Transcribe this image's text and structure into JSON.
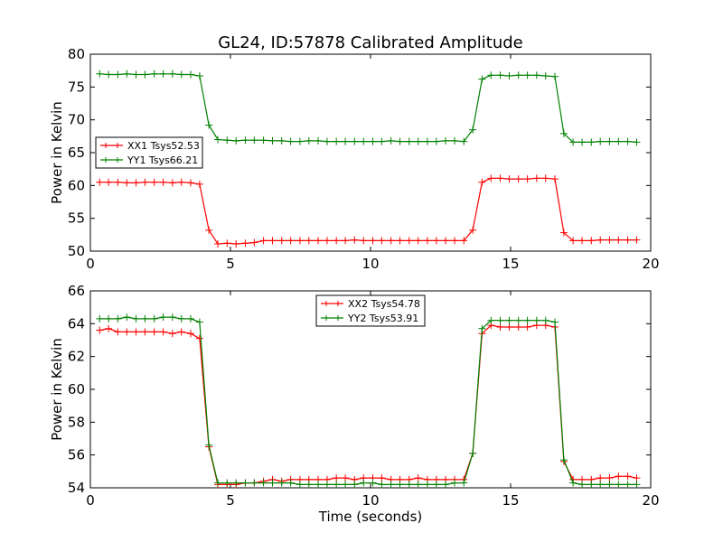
{
  "title": "GL24, ID:57878 Calibrated Amplitude",
  "chart_data": [
    {
      "type": "line",
      "ylabel": "Power in Kelvin",
      "xlabel": "",
      "xlim": [
        0,
        20
      ],
      "ylim": [
        50,
        80
      ],
      "xticks": [
        "0",
        "5",
        "10",
        "15",
        "20"
      ],
      "yticks": [
        "50",
        "55",
        "60",
        "65",
        "70",
        "75",
        "80"
      ],
      "legend_position": "center-left",
      "grid": false,
      "x": [
        0.33,
        0.65,
        0.98,
        1.3,
        1.63,
        1.95,
        2.28,
        2.6,
        2.93,
        3.25,
        3.58,
        3.9,
        4.23,
        4.55,
        4.88,
        5.2,
        5.53,
        5.85,
        6.18,
        6.5,
        6.83,
        7.15,
        7.48,
        7.8,
        8.13,
        8.45,
        8.78,
        9.1,
        9.43,
        9.75,
        10.08,
        10.4,
        10.73,
        11.05,
        11.38,
        11.7,
        12.03,
        12.35,
        12.68,
        13.0,
        13.33,
        13.65,
        13.98,
        14.3,
        14.63,
        14.95,
        15.28,
        15.6,
        15.93,
        16.25,
        16.58,
        16.9,
        17.23,
        17.55,
        17.88,
        18.2,
        18.53,
        18.85,
        19.18,
        19.5
      ],
      "series": [
        {
          "name": "XX1 Tsys52.53",
          "color": "#ff0000",
          "values": [
            60.5,
            60.5,
            60.5,
            60.4,
            60.4,
            60.5,
            60.5,
            60.5,
            60.4,
            60.5,
            60.4,
            60.2,
            53.2,
            51.1,
            51.2,
            51.1,
            51.2,
            51.3,
            51.6,
            51.6,
            51.6,
            51.6,
            51.6,
            51.6,
            51.6,
            51.6,
            51.6,
            51.6,
            51.7,
            51.6,
            51.6,
            51.6,
            51.6,
            51.6,
            51.6,
            51.6,
            51.6,
            51.6,
            51.6,
            51.6,
            51.6,
            53.2,
            60.5,
            61.1,
            61.1,
            61.0,
            61.0,
            61.0,
            61.1,
            61.1,
            61.0,
            52.8,
            51.6,
            51.6,
            51.6,
            51.7,
            51.7,
            51.7,
            51.7,
            51.7
          ]
        },
        {
          "name": "YY1 Tsys66.21",
          "color": "#008000",
          "values": [
            77.0,
            76.9,
            76.9,
            77.0,
            76.9,
            76.9,
            77.0,
            77.0,
            77.0,
            76.9,
            76.9,
            76.7,
            69.2,
            67.0,
            66.9,
            66.8,
            66.9,
            66.9,
            66.9,
            66.8,
            66.8,
            66.7,
            66.7,
            66.8,
            66.8,
            66.7,
            66.7,
            66.7,
            66.7,
            66.7,
            66.7,
            66.7,
            66.8,
            66.7,
            66.7,
            66.7,
            66.7,
            66.7,
            66.8,
            66.8,
            66.7,
            68.5,
            76.2,
            76.8,
            76.8,
            76.7,
            76.8,
            76.8,
            76.8,
            76.7,
            76.6,
            67.9,
            66.6,
            66.6,
            66.6,
            66.7,
            66.7,
            66.7,
            66.7,
            66.6
          ]
        }
      ]
    },
    {
      "type": "line",
      "ylabel": "Power in Kelvin",
      "xlabel": "Time (seconds)",
      "xlim": [
        0,
        20
      ],
      "ylim": [
        54,
        66
      ],
      "xticks": [
        "0",
        "5",
        "10",
        "15",
        "20"
      ],
      "yticks": [
        "54",
        "56",
        "58",
        "60",
        "62",
        "64",
        "66"
      ],
      "legend_position": "upper-center",
      "grid": false,
      "x": [
        0.33,
        0.65,
        0.98,
        1.3,
        1.63,
        1.95,
        2.28,
        2.6,
        2.93,
        3.25,
        3.58,
        3.9,
        4.23,
        4.55,
        4.88,
        5.2,
        5.53,
        5.85,
        6.18,
        6.5,
        6.83,
        7.15,
        7.48,
        7.8,
        8.13,
        8.45,
        8.78,
        9.1,
        9.43,
        9.75,
        10.08,
        10.4,
        10.73,
        11.05,
        11.38,
        11.7,
        12.03,
        12.35,
        12.68,
        13.0,
        13.33,
        13.65,
        13.98,
        14.3,
        14.63,
        14.95,
        15.28,
        15.6,
        15.93,
        16.25,
        16.58,
        16.9,
        17.23,
        17.55,
        17.88,
        18.2,
        18.53,
        18.85,
        19.18,
        19.5
      ],
      "series": [
        {
          "name": "XX2 Tsys54.78",
          "color": "#ff0000",
          "values": [
            63.6,
            63.7,
            63.5,
            63.5,
            63.5,
            63.5,
            63.5,
            63.5,
            63.4,
            63.5,
            63.4,
            63.1,
            56.5,
            54.2,
            54.2,
            54.2,
            54.3,
            54.3,
            54.4,
            54.5,
            54.4,
            54.5,
            54.5,
            54.5,
            54.5,
            54.5,
            54.6,
            54.6,
            54.5,
            54.6,
            54.6,
            54.6,
            54.5,
            54.5,
            54.5,
            54.6,
            54.5,
            54.5,
            54.5,
            54.5,
            54.5,
            56.1,
            63.4,
            63.9,
            63.8,
            63.8,
            63.8,
            63.8,
            63.9,
            63.9,
            63.8,
            55.6,
            54.5,
            54.5,
            54.5,
            54.6,
            54.6,
            54.7,
            54.7,
            54.6
          ]
        },
        {
          "name": "YY2 Tsys53.91",
          "color": "#008000",
          "values": [
            64.3,
            64.3,
            64.3,
            64.4,
            64.3,
            64.3,
            64.3,
            64.4,
            64.4,
            64.3,
            64.3,
            64.1,
            56.6,
            54.3,
            54.3,
            54.3,
            54.3,
            54.3,
            54.3,
            54.3,
            54.3,
            54.3,
            54.2,
            54.2,
            54.2,
            54.2,
            54.2,
            54.2,
            54.2,
            54.3,
            54.3,
            54.2,
            54.2,
            54.2,
            54.2,
            54.2,
            54.2,
            54.2,
            54.2,
            54.3,
            54.3,
            56.1,
            63.7,
            64.2,
            64.2,
            64.2,
            64.2,
            64.2,
            64.2,
            64.2,
            64.1,
            55.7,
            54.3,
            54.2,
            54.2,
            54.2,
            54.2,
            54.2,
            54.2,
            54.2
          ]
        }
      ]
    }
  ]
}
